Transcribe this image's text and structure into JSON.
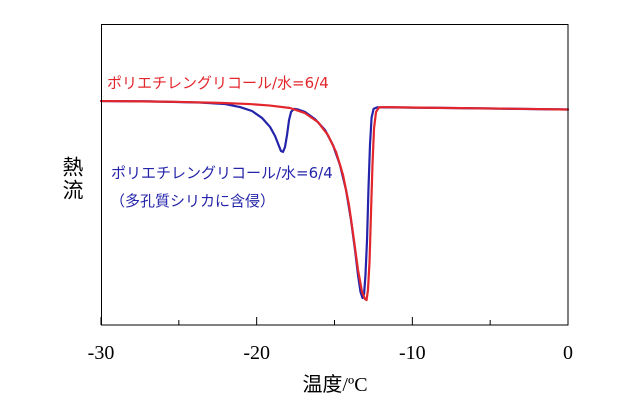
{
  "chart_data": {
    "type": "line",
    "xlabel": "温度/ºC",
    "ylabel": "熱流",
    "xlim": [
      -30,
      0
    ],
    "ylim": [
      -7.5,
      2.5
    ],
    "x_ticks": [
      -30,
      -20,
      -10,
      0
    ],
    "x_tick_labels": [
      "-30",
      "-20",
      "-10",
      "0"
    ],
    "x_minor_ticks": [
      -25,
      -15,
      -5
    ],
    "grid": false,
    "legend": "none",
    "series": [
      {
        "label_lines": [
          "ポリエチレングリコール/水=6/4"
        ],
        "color": "#e3262c",
        "x": [
          -30.0,
          -27.49,
          -24.93,
          -22.36,
          -20.43,
          -19.14,
          -17.86,
          -16.9,
          -16.06,
          -15.42,
          -14.9,
          -14.45,
          -14.07,
          -13.75,
          -13.49,
          -13.23,
          -13.04,
          -12.94,
          -12.85,
          -12.75,
          -12.66,
          -12.56,
          -12.46,
          -12.33,
          -12.14,
          -11.76,
          -10.79,
          -7.58,
          -4.37,
          0.0
        ],
        "y": [
          -0.06,
          -0.07,
          -0.09,
          -0.12,
          -0.16,
          -0.21,
          -0.29,
          -0.46,
          -0.76,
          -1.19,
          -1.75,
          -2.52,
          -3.51,
          -4.68,
          -5.67,
          -6.4,
          -6.64,
          -6.67,
          -6.34,
          -5.41,
          -3.85,
          -2.18,
          -0.96,
          -0.42,
          -0.27,
          -0.26,
          -0.27,
          -0.29,
          -0.31,
          -0.34
        ]
      },
      {
        "label_lines": [
          "ポリエチレングリコール/水=6/4",
          "（多孔質シリカに含侵）"
        ],
        "color": "#2424aa",
        "x": [
          -30.0,
          -26.85,
          -23.64,
          -22.03,
          -21.07,
          -20.3,
          -19.66,
          -19.14,
          -18.82,
          -18.57,
          -18.44,
          -18.31,
          -18.18,
          -18.05,
          -17.92,
          -17.79,
          -17.6,
          -17.34,
          -16.9,
          -16.25,
          -15.61,
          -15.1,
          -14.65,
          -14.26,
          -13.94,
          -13.68,
          -13.49,
          -13.33,
          -13.2,
          -13.1,
          -13.01,
          -12.91,
          -12.82,
          -12.72,
          -12.62,
          -12.49,
          -12.27,
          -11.43,
          -7.58,
          0.0
        ],
        "y": [
          -0.06,
          -0.07,
          -0.11,
          -0.16,
          -0.26,
          -0.39,
          -0.62,
          -0.92,
          -1.22,
          -1.55,
          -1.72,
          -1.75,
          -1.59,
          -1.19,
          -0.69,
          -0.42,
          -0.32,
          -0.34,
          -0.42,
          -0.66,
          -1.02,
          -1.52,
          -2.18,
          -3.01,
          -4.01,
          -5.01,
          -5.84,
          -6.4,
          -6.6,
          -6.47,
          -5.84,
          -4.68,
          -3.01,
          -1.52,
          -0.62,
          -0.32,
          -0.27,
          -0.27,
          -0.29,
          -0.34
        ]
      }
    ]
  }
}
